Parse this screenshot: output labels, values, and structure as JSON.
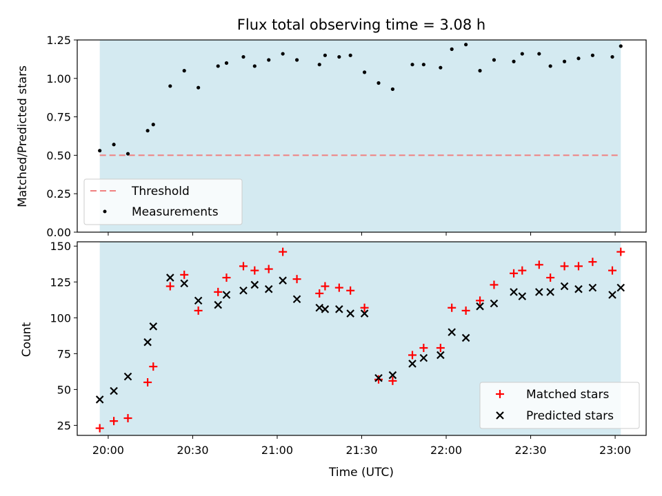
{
  "chart_data": [
    {
      "type": "scatter",
      "title": "Flux total observing time = 3.08 h",
      "xlabel": "",
      "ylabel": "Matched/Predicted stars",
      "ylim": [
        0,
        1.25
      ],
      "yticks": [
        "0.00",
        "0.25",
        "0.50",
        "0.75",
        "1.00",
        "1.25"
      ],
      "x_range": [
        "19:49",
        "23:11"
      ],
      "shaded_span": [
        "19:57",
        "23:02"
      ],
      "shade_color": "#d4eaf1",
      "threshold": 0.5,
      "threshold_color": "#f08080",
      "legend_position": "lower left",
      "legend": [
        {
          "label": "Threshold",
          "marker": "dashed-line"
        },
        {
          "label": "Measurements",
          "marker": "dot"
        }
      ],
      "series": [
        {
          "name": "Measurements",
          "color": "#000000",
          "x": [
            "19:57",
            "20:02",
            "20:07",
            "20:14",
            "20:16",
            "20:22",
            "20:27",
            "20:32",
            "20:39",
            "20:42",
            "20:48",
            "20:52",
            "20:57",
            "21:02",
            "21:07",
            "21:15",
            "21:17",
            "21:22",
            "21:26",
            "21:31",
            "21:36",
            "21:41",
            "21:48",
            "21:52",
            "21:58",
            "22:02",
            "22:07",
            "22:12",
            "22:17",
            "22:24",
            "22:27",
            "22:33",
            "22:37",
            "22:42",
            "22:47",
            "22:52",
            "22:59",
            "23:02"
          ],
          "values": [
            0.53,
            0.57,
            0.51,
            0.66,
            0.7,
            0.95,
            1.05,
            0.94,
            1.08,
            1.1,
            1.14,
            1.08,
            1.12,
            1.16,
            1.12,
            1.09,
            1.15,
            1.14,
            1.15,
            1.04,
            0.97,
            0.93,
            1.09,
            1.09,
            1.07,
            1.19,
            1.22,
            1.05,
            1.12,
            1.11,
            1.16,
            1.16,
            1.08,
            1.11,
            1.13,
            1.15,
            1.14,
            1.21
          ]
        }
      ]
    },
    {
      "type": "scatter",
      "title": "",
      "xlabel": "Time (UTC)",
      "ylabel": "Count",
      "ylim": [
        18,
        153
      ],
      "yticks": [
        "25",
        "50",
        "75",
        "100",
        "125",
        "150"
      ],
      "xticks": [
        "20:00",
        "20:30",
        "21:00",
        "21:30",
        "22:00",
        "22:30",
        "23:00"
      ],
      "x_range": [
        "19:49",
        "23:11"
      ],
      "shaded_span": [
        "19:57",
        "23:02"
      ],
      "shade_color": "#d4eaf1",
      "legend_position": "lower right",
      "legend": [
        {
          "label": "Matched stars",
          "marker": "plus"
        },
        {
          "label": "Predicted stars",
          "marker": "x"
        }
      ],
      "series": [
        {
          "name": "Matched stars",
          "color": "#ff0000",
          "x": [
            "19:57",
            "20:02",
            "20:07",
            "20:14",
            "20:16",
            "20:22",
            "20:27",
            "20:32",
            "20:39",
            "20:42",
            "20:48",
            "20:52",
            "20:57",
            "21:02",
            "21:07",
            "21:15",
            "21:17",
            "21:22",
            "21:26",
            "21:31",
            "21:36",
            "21:41",
            "21:48",
            "21:52",
            "21:58",
            "22:02",
            "22:07",
            "22:12",
            "22:17",
            "22:24",
            "22:27",
            "22:33",
            "22:37",
            "22:42",
            "22:47",
            "22:52",
            "22:59",
            "23:02"
          ],
          "values": [
            23,
            28,
            30,
            55,
            66,
            122,
            130,
            105,
            118,
            128,
            136,
            133,
            134,
            146,
            127,
            117,
            122,
            121,
            119,
            107,
            57,
            56,
            74,
            79,
            79,
            107,
            105,
            112,
            123,
            131,
            133,
            137,
            128,
            136,
            136,
            139,
            133,
            146
          ]
        },
        {
          "name": "Predicted stars",
          "color": "#000000",
          "x": [
            "19:57",
            "20:02",
            "20:07",
            "20:14",
            "20:16",
            "20:22",
            "20:27",
            "20:32",
            "20:39",
            "20:42",
            "20:48",
            "20:52",
            "20:57",
            "21:02",
            "21:07",
            "21:15",
            "21:17",
            "21:22",
            "21:26",
            "21:31",
            "21:36",
            "21:41",
            "21:48",
            "21:52",
            "21:58",
            "22:02",
            "22:07",
            "22:12",
            "22:17",
            "22:24",
            "22:27",
            "22:33",
            "22:37",
            "22:42",
            "22:47",
            "22:52",
            "22:59",
            "23:02"
          ],
          "values": [
            43,
            49,
            59,
            83,
            94,
            128,
            124,
            112,
            109,
            116,
            119,
            123,
            120,
            126,
            113,
            107,
            106,
            106,
            103,
            103,
            58,
            60,
            68,
            72,
            74,
            90,
            86,
            108,
            110,
            118,
            115,
            118,
            118,
            122,
            120,
            121,
            116,
            121
          ]
        }
      ]
    }
  ]
}
